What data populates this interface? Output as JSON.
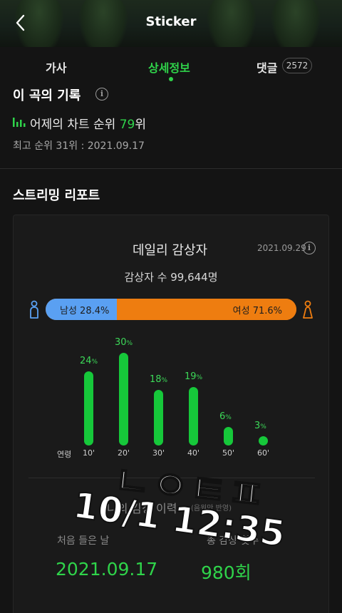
{
  "header": {
    "title": "Sticker",
    "back_icon": "chevron-left-icon"
  },
  "tabs": [
    {
      "label": "가사"
    },
    {
      "label": "상세정보",
      "active": true
    },
    {
      "label": "댓글",
      "count": "2572"
    }
  ],
  "record": {
    "title": "이 곡의 기록",
    "yesterday_prefix": "어제의 차트 순위 ",
    "yesterday_rank": "79",
    "yesterday_suffix": "위",
    "best": "최고 순위 31위 : 2021.09.17"
  },
  "report": {
    "title": "스트리밍 리포트",
    "daily_title": "데일리 감상자",
    "date": "2021.09.29",
    "listeners": "감상자 수 99,644명",
    "male_label": "남성 28.4%",
    "female_label": "여성 71.6%",
    "male_pct": 28.4,
    "female_pct": 71.6,
    "colors": {
      "male": "#5aa0f2",
      "female": "#ee7d10",
      "bar": "#16c83a",
      "accent": "#2fd34a"
    }
  },
  "chart_data": {
    "type": "bar",
    "xlabel": "연령",
    "categories": [
      "10'",
      "20'",
      "30'",
      "40'",
      "50'",
      "60'"
    ],
    "values": [
      24,
      30,
      18,
      19,
      6,
      3
    ],
    "unit": "%"
  },
  "history": {
    "title": "나의 감상 이력",
    "subtitle": "(음원만 반영)",
    "first_label": "처음 들은 날",
    "first_value": "2021.09.17",
    "count_label": "총 감상 횟수",
    "count_value": "980회"
  },
  "overlay": {
    "line1": "ㄴㅇㅌㅍ",
    "line2": "10/1 12:35"
  }
}
